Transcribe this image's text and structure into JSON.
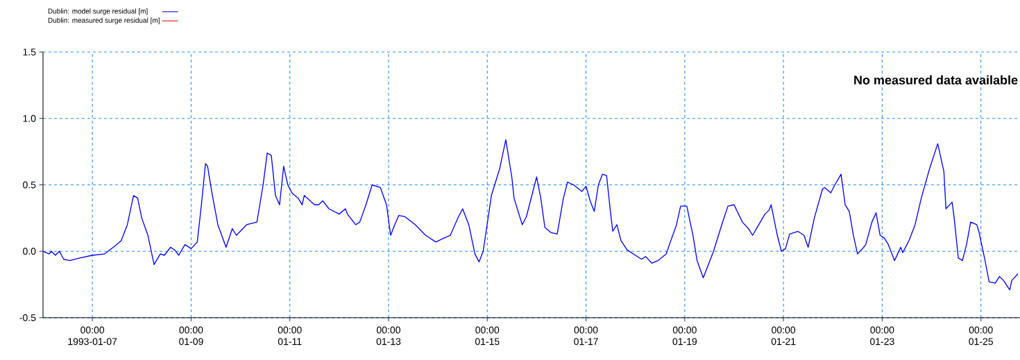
{
  "chart_data": {
    "type": "line",
    "annotations": [
      "No measured data available"
    ],
    "xlim": [
      "1993-01-06T00:00",
      "1993-01-25T19:00"
    ],
    "xticks": [
      {
        "value": "1993-01-07",
        "label": "00:00 1993-01-07"
      },
      {
        "value": "1993-01-09",
        "label": "00:00 01-09"
      },
      {
        "value": "1993-01-11",
        "label": "00:00 01-11"
      },
      {
        "value": "1993-01-13",
        "label": "00:00 01-13"
      },
      {
        "value": "1993-01-15",
        "label": "00:00 01-15"
      },
      {
        "value": "1993-01-17",
        "label": "00:00 01-17"
      },
      {
        "value": "1993-01-19",
        "label": "00:00 01-19"
      },
      {
        "value": "1993-01-21",
        "label": "00:00 01-21"
      },
      {
        "value": "1993-01-23",
        "label": "00:00 01-23"
      },
      {
        "value": "1993-01-25",
        "label": "00:00 01-25"
      }
    ],
    "ylim": [
      -0.5,
      1.5
    ],
    "yticks": [
      {
        "value": -0.5,
        "label": "-0.5"
      },
      {
        "value": 0,
        "label": "0.0"
      },
      {
        "value": 0.5,
        "label": "0.5"
      },
      {
        "value": 1,
        "label": "1.0"
      },
      {
        "value": 1.5,
        "label": "1.5"
      }
    ],
    "grid": true,
    "legend": "top left",
    "marker": "none",
    "line_style": "solid",
    "series": [
      {
        "name": "Dublin: model surge residual [m]",
        "color": "#0000ff",
        "x": [
          "1993-01-06T00:00",
          "1993-01-06T03:00",
          "1993-01-06T04:00",
          "1993-01-06T06:00",
          "1993-01-06T08:00",
          "1993-01-06T10:00",
          "1993-01-06T13:00",
          "1993-01-06T18:00",
          "1993-01-07T00:00",
          "1993-01-07T06:00",
          "1993-01-07T11:00",
          "1993-01-07T14:00",
          "1993-01-07T17:00",
          "1993-01-07T20:00",
          "1993-01-07T22:00",
          "1993-01-08T00:00",
          "1993-01-08T03:00",
          "1993-01-08T06:00",
          "1993-01-08T09:00",
          "1993-01-08T11:00",
          "1993-01-08T14:00",
          "1993-01-08T16:00",
          "1993-01-08T18:00",
          "1993-01-08T21:00",
          "1993-01-09T00:00",
          "1993-01-09T03:00",
          "1993-01-09T05:00",
          "1993-01-09T07:00",
          "1993-01-09T08:00",
          "1993-01-09T10:00",
          "1993-01-09T13:00",
          "1993-01-09T17:00",
          "1993-01-09T20:00",
          "1993-01-09T22:00",
          "1993-01-10T03:00",
          "1993-01-10T08:00",
          "1993-01-10T11:00",
          "1993-01-10T13:00",
          "1993-01-10T15:00",
          "1993-01-10T17:00",
          "1993-01-10T19:00",
          "1993-01-10T21:00",
          "1993-01-10T23:00",
          "1993-01-11T01:00",
          "1993-01-11T04:00",
          "1993-01-11T06:00",
          "1993-01-11T07:00",
          "1993-01-11T12:00",
          "1993-01-11T14:00",
          "1993-01-11T16:00",
          "1993-01-11T19:00",
          "1993-01-12T00:00",
          "1993-01-12T03:00",
          "1993-01-12T04:00",
          "1993-01-12T08:00",
          "1993-01-12T10:00",
          "1993-01-12T13:00",
          "1993-01-12T16:00",
          "1993-01-12T20:00",
          "1993-01-12T23:00",
          "1993-01-13T01:00",
          "1993-01-13T03:00",
          "1993-01-13T05:00",
          "1993-01-13T08:00",
          "1993-01-13T13:00",
          "1993-01-13T18:00",
          "1993-01-13T23:00",
          "1993-01-14T03:00",
          "1993-01-14T06:00",
          "1993-01-14T10:00",
          "1993-01-14T12:00",
          "1993-01-14T15:00",
          "1993-01-14T18:00",
          "1993-01-14T20:00",
          "1993-01-14T22:00",
          "1993-01-15T02:00",
          "1993-01-15T06:00",
          "1993-01-15T09:00",
          "1993-01-15T12:00",
          "1993-01-15T13:00",
          "1993-01-15T17:00",
          "1993-01-15T19:00",
          "1993-01-15T23:00",
          "1993-01-16T00:00",
          "1993-01-16T02:00",
          "1993-01-16T04:00",
          "1993-01-16T07:00",
          "1993-01-16T10:00",
          "1993-01-16T13:00",
          "1993-01-16T15:00",
          "1993-01-16T18:00",
          "1993-01-16T22:00",
          "1993-01-17T00:00",
          "1993-01-17T02:00",
          "1993-01-17T04:00",
          "1993-01-17T06:00",
          "1993-01-17T08:00",
          "1993-01-17T10:00",
          "1993-01-17T12:00",
          "1993-01-17T13:00",
          "1993-01-17T15:00",
          "1993-01-17T17:00",
          "1993-01-17T20:00",
          "1993-01-18T00:00",
          "1993-01-18T03:00",
          "1993-01-18T05:00",
          "1993-01-18T08:00",
          "1993-01-18T11:00",
          "1993-01-18T15:00",
          "1993-01-18T17:00",
          "1993-01-18T20:00",
          "1993-01-18T22:00",
          "1993-01-19T01:00",
          "1993-01-19T04:00",
          "1993-01-19T06:00",
          "1993-01-19T09:00",
          "1993-01-19T14:00",
          "1993-01-19T18:00",
          "1993-01-19T21:00",
          "1993-01-20T00:00",
          "1993-01-20T04:00",
          "1993-01-20T07:00",
          "1993-01-20T09:00",
          "1993-01-20T12:00",
          "1993-01-20T15:00",
          "1993-01-20T17:00",
          "1993-01-20T18:00",
          "1993-01-20T21:00",
          "1993-01-20T23:00",
          "1993-01-21T01:00",
          "1993-01-21T03:00",
          "1993-01-21T07:00",
          "1993-01-21T10:00",
          "1993-01-21T12:00",
          "1993-01-21T15:00",
          "1993-01-21T19:00",
          "1993-01-21T20:00",
          "1993-01-21T23:00",
          "1993-01-22T01:00",
          "1993-01-22T04:00",
          "1993-01-22T06:00",
          "1993-01-22T08:00",
          "1993-01-22T10:00",
          "1993-01-22T12:00",
          "1993-01-22T15:00",
          "1993-01-22T16:00",
          "1993-01-22T19:00",
          "1993-01-22T21:00",
          "1993-01-22T23:00",
          "1993-01-23T01:00",
          "1993-01-23T03:00",
          "1993-01-23T06:00",
          "1993-01-23T09:00",
          "1993-01-23T10:00",
          "1993-01-23T13:00",
          "1993-01-23T16:00",
          "1993-01-23T19:00",
          "1993-01-23T23:00",
          "1993-01-24T03:00",
          "1993-01-24T06:00",
          "1993-01-24T07:00",
          "1993-01-24T10:00",
          "1993-01-24T11:00",
          "1993-01-24T13:00",
          "1993-01-24T15:00",
          "1993-01-24T17:00",
          "1993-01-24T19:00",
          "1993-01-24T22:00",
          "1993-01-24T23:00",
          "1993-01-25T02:00",
          "1993-01-25T04:00",
          "1993-01-25T07:00",
          "1993-01-25T09:00",
          "1993-01-25T11:00",
          "1993-01-25T14:00",
          "1993-01-25T15:00",
          "1993-01-25T18:00"
        ],
        "values": [
          0.0,
          -0.02,
          0.0,
          -0.03,
          0.0,
          -0.06,
          -0.07,
          -0.05,
          -0.03,
          -0.02,
          0.04,
          0.08,
          0.2,
          0.42,
          0.4,
          0.25,
          0.12,
          -0.1,
          -0.02,
          -0.03,
          0.03,
          0.01,
          -0.03,
          0.05,
          0.02,
          0.07,
          0.35,
          0.66,
          0.64,
          0.45,
          0.2,
          0.03,
          0.17,
          0.12,
          0.2,
          0.22,
          0.5,
          0.74,
          0.72,
          0.42,
          0.35,
          0.64,
          0.5,
          0.44,
          0.4,
          0.35,
          0.42,
          0.35,
          0.35,
          0.38,
          0.32,
          0.28,
          0.32,
          0.28,
          0.2,
          0.22,
          0.35,
          0.5,
          0.48,
          0.35,
          0.12,
          0.2,
          0.27,
          0.26,
          0.2,
          0.12,
          0.07,
          0.1,
          0.12,
          0.26,
          0.32,
          0.2,
          -0.02,
          -0.08,
          0.0,
          0.42,
          0.62,
          0.84,
          0.55,
          0.4,
          0.2,
          0.26,
          0.5,
          0.56,
          0.4,
          0.18,
          0.14,
          0.13,
          0.4,
          0.52,
          0.5,
          0.45,
          0.49,
          0.38,
          0.3,
          0.5,
          0.58,
          0.57,
          0.28,
          0.15,
          0.2,
          0.08,
          0.01,
          -0.03,
          -0.06,
          -0.04,
          -0.09,
          -0.07,
          -0.02,
          0.07,
          0.2,
          0.34,
          0.34,
          0.12,
          -0.07,
          -0.2,
          0.0,
          0.2,
          0.34,
          0.35,
          0.22,
          0.17,
          0.12,
          0.2,
          0.28,
          0.31,
          0.35,
          0.12,
          0.0,
          0.02,
          0.13,
          0.15,
          0.12,
          0.03,
          0.25,
          0.47,
          0.48,
          0.44,
          0.5,
          0.58,
          0.35,
          0.3,
          0.12,
          -0.02,
          0.03,
          0.05,
          0.22,
          0.29,
          0.12,
          0.1,
          0.05,
          -0.07,
          0.03,
          -0.01,
          0.08,
          0.2,
          0.4,
          0.62,
          0.81,
          0.6,
          0.32,
          0.37,
          0.25,
          -0.05,
          -0.07,
          0.05,
          0.22,
          0.2,
          0.15,
          -0.07,
          -0.23,
          -0.24,
          -0.19,
          -0.22,
          -0.29,
          -0.22,
          -0.17
        ]
      },
      {
        "name": "Dublin: measured surge residual [m]",
        "color": "#ff0000"
      }
    ]
  }
}
